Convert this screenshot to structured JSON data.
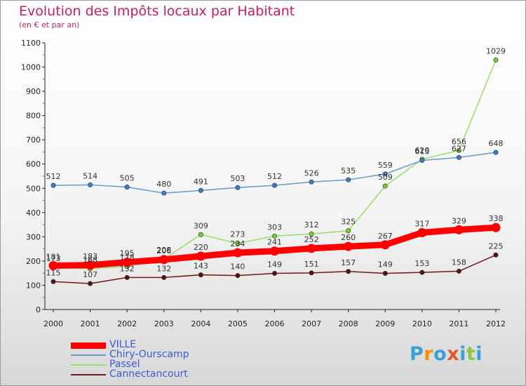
{
  "header": {
    "title": "Evolution des Impôts locaux par Habitant",
    "subtitle": "(en € et par an)"
  },
  "logo": {
    "text": "Proxiti",
    "letters": [
      "P",
      "r",
      "o",
      "x",
      "i",
      "t",
      "i"
    ],
    "letter_colors": [
      "#3aa0d8",
      "#ff8c00",
      "#3aa0d8",
      "#e4572e",
      "#3aa0d8",
      "#8cc63f",
      "#3aa0d8"
    ]
  },
  "chart_data": {
    "type": "line",
    "title": "Evolution des Impôts locaux par Habitant",
    "subtitle": "(en € et par an)",
    "xlabel": "",
    "ylabel": "",
    "ylim": [
      0,
      1100
    ],
    "yticks": [
      0,
      100,
      200,
      300,
      400,
      500,
      600,
      700,
      800,
      900,
      1000,
      1100
    ],
    "grid": false,
    "legend_position": "bottom-left",
    "x": [
      "2000",
      "2001",
      "2002",
      "2003",
      "2004",
      "2005",
      "2006",
      "2007",
      "2008",
      "2009",
      "2010",
      "2011",
      "2012"
    ],
    "series": [
      {
        "name": "VILLE",
        "color": "#ff0000",
        "marker_color": "#ff0000",
        "thick": true,
        "values": [
          181,
          183,
          195,
          206,
          220,
          234,
          241,
          252,
          260,
          267,
          317,
          329,
          338
        ]
      },
      {
        "name": "Chiry-Ourscamp",
        "color": "#6699cc",
        "marker_color": "#3a7fc4",
        "thick": false,
        "values": [
          512,
          514,
          505,
          480,
          491,
          503,
          512,
          526,
          535,
          559,
          615,
          627,
          648
        ]
      },
      {
        "name": "Passel",
        "color": "#99dd66",
        "marker_color": "#77cc33",
        "thick": false,
        "values": [
          173,
          168,
          178,
          208,
          309,
          273,
          303,
          312,
          325,
          509,
          620,
          656,
          1029
        ]
      },
      {
        "name": "Cannectancourt",
        "color": "#6e1a1a",
        "marker_color": "#5a1010",
        "thick": false,
        "values": [
          115,
          107,
          132,
          132,
          143,
          140,
          149,
          151,
          157,
          149,
          153,
          158,
          225
        ]
      }
    ]
  }
}
